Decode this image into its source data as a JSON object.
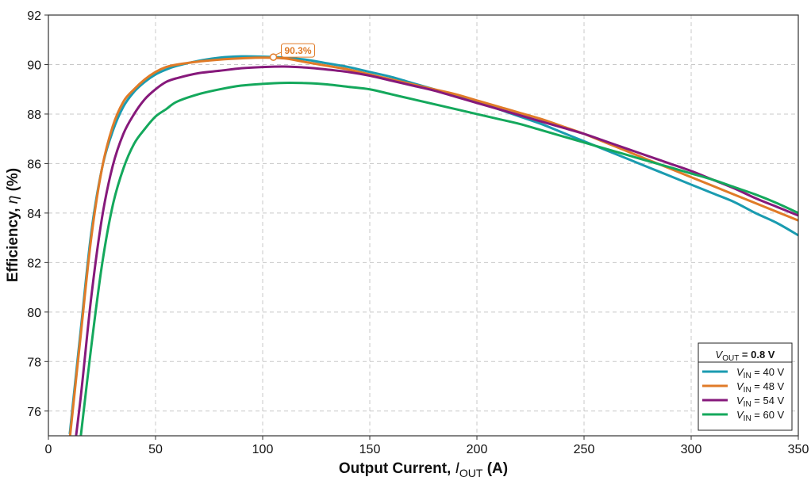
{
  "chart_data": {
    "type": "line",
    "title": "",
    "xlabel": {
      "main": "Output Current, ",
      "symbol": "I",
      "sub": "OUT",
      "unit": " (A)"
    },
    "ylabel": {
      "main": "Efficiency, ",
      "symbol": "η",
      "unit": " (%)"
    },
    "xlim": [
      0,
      350
    ],
    "ylim": [
      75,
      92
    ],
    "xticks": [
      0,
      50,
      100,
      150,
      200,
      250,
      300,
      350
    ],
    "yticks": [
      76,
      78,
      80,
      82,
      84,
      86,
      88,
      90,
      92
    ],
    "grid": true,
    "legend": {
      "placement": "bottom-right",
      "title": {
        "symbol": "V",
        "sub": "OUT",
        "value": " = 0.8 V"
      }
    },
    "annotation": {
      "label": "90.3%",
      "x": 105,
      "y": 90.3,
      "color": "#e07b28"
    },
    "series": [
      {
        "name": {
          "symbol": "V",
          "sub": "IN",
          "value": " = 40 V"
        },
        "color": "#1a9bb0",
        "x": [
          10,
          15,
          20,
          25,
          30,
          35,
          40,
          45,
          50,
          55,
          60,
          70,
          80,
          90,
          100,
          110,
          120,
          130,
          140,
          150,
          160,
          170,
          180,
          190,
          200,
          210,
          220,
          230,
          240,
          250,
          260,
          270,
          280,
          290,
          300,
          310,
          320,
          330,
          340,
          350
        ],
        "y": [
          75.1,
          79.2,
          83.2,
          85.8,
          87.3,
          88.3,
          88.9,
          89.3,
          89.6,
          89.8,
          89.95,
          90.15,
          90.28,
          90.33,
          90.32,
          90.28,
          90.2,
          90.05,
          89.9,
          89.7,
          89.5,
          89.25,
          89.0,
          88.75,
          88.5,
          88.2,
          87.9,
          87.6,
          87.25,
          86.9,
          86.55,
          86.2,
          85.85,
          85.5,
          85.15,
          84.8,
          84.45,
          84.0,
          83.6,
          83.1
        ]
      },
      {
        "name": {
          "symbol": "V",
          "sub": "IN",
          "value": " = 48 V"
        },
        "color": "#e07b28",
        "x": [
          10,
          15,
          20,
          25,
          30,
          35,
          40,
          45,
          50,
          55,
          60,
          70,
          80,
          90,
          100,
          110,
          120,
          130,
          140,
          150,
          160,
          170,
          180,
          190,
          200,
          210,
          220,
          230,
          240,
          250,
          260,
          270,
          280,
          290,
          300,
          310,
          320,
          330,
          340,
          350
        ],
        "y": [
          74.9,
          79.0,
          83.0,
          85.8,
          87.5,
          88.5,
          89.0,
          89.4,
          89.7,
          89.9,
          90.0,
          90.12,
          90.2,
          90.25,
          90.28,
          90.25,
          90.1,
          89.95,
          89.8,
          89.6,
          89.4,
          89.2,
          89.0,
          88.8,
          88.55,
          88.3,
          88.05,
          87.8,
          87.5,
          87.2,
          86.85,
          86.5,
          86.15,
          85.8,
          85.45,
          85.1,
          84.75,
          84.4,
          84.05,
          83.7
        ]
      },
      {
        "name": {
          "symbol": "V",
          "sub": "IN",
          "value": " = 54 V"
        },
        "color": "#86197b",
        "x": [
          10,
          15,
          20,
          25,
          30,
          35,
          40,
          45,
          50,
          55,
          60,
          70,
          80,
          90,
          100,
          110,
          120,
          130,
          140,
          150,
          160,
          170,
          180,
          190,
          200,
          210,
          220,
          230,
          240,
          250,
          260,
          270,
          280,
          290,
          300,
          310,
          320,
          330,
          340,
          350
        ],
        "y": [
          73.0,
          76.5,
          80.6,
          83.8,
          85.9,
          87.2,
          88.0,
          88.6,
          89.0,
          89.3,
          89.45,
          89.65,
          89.75,
          89.85,
          89.9,
          89.92,
          89.88,
          89.8,
          89.7,
          89.55,
          89.35,
          89.15,
          88.95,
          88.7,
          88.45,
          88.2,
          87.95,
          87.7,
          87.45,
          87.2,
          86.9,
          86.6,
          86.3,
          86.0,
          85.7,
          85.35,
          85.0,
          84.6,
          84.25,
          83.9
        ]
      },
      {
        "name": {
          "symbol": "V",
          "sub": "IN",
          "value": " = 60 V"
        },
        "color": "#14a85c",
        "x": [
          15,
          20,
          25,
          30,
          35,
          40,
          45,
          50,
          55,
          60,
          70,
          80,
          90,
          100,
          110,
          120,
          130,
          140,
          150,
          160,
          170,
          180,
          190,
          200,
          210,
          220,
          230,
          240,
          250,
          260,
          270,
          280,
          290,
          300,
          310,
          320,
          330,
          340,
          350
        ],
        "y": [
          74.9,
          78.6,
          81.9,
          84.3,
          85.8,
          86.8,
          87.4,
          87.9,
          88.2,
          88.5,
          88.8,
          89.0,
          89.15,
          89.22,
          89.26,
          89.25,
          89.2,
          89.1,
          89.0,
          88.8,
          88.6,
          88.4,
          88.2,
          88.0,
          87.8,
          87.6,
          87.35,
          87.1,
          86.85,
          86.6,
          86.35,
          86.1,
          85.85,
          85.6,
          85.35,
          85.05,
          84.75,
          84.4,
          84.0
        ]
      }
    ]
  }
}
